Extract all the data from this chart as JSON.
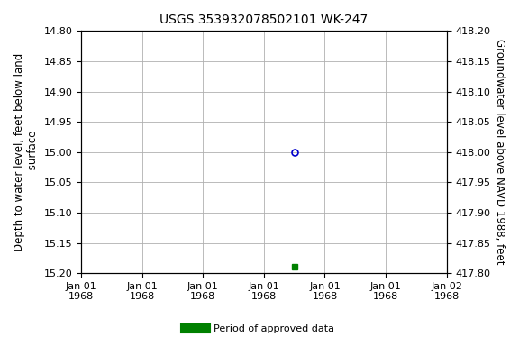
{
  "title": "USGS 353932078502101 WK-247",
  "ylabel_left": "Depth to water level, feet below land\n surface",
  "ylabel_right": "Groundwater level above NAVD 1988, feet",
  "ylim_left": [
    15.2,
    14.8
  ],
  "ylim_right": [
    417.8,
    418.2
  ],
  "yticks_left": [
    14.8,
    14.85,
    14.9,
    14.95,
    15.0,
    15.05,
    15.1,
    15.15,
    15.2
  ],
  "yticks_right": [
    417.8,
    417.85,
    417.9,
    417.95,
    418.0,
    418.05,
    418.1,
    418.15,
    418.2
  ],
  "data_point_open_x": 3.5,
  "data_point_open_y": 15.0,
  "data_point_filled_x": 3.5,
  "data_point_filled_y": 15.19,
  "open_marker_color": "#0000cc",
  "filled_marker_color": "#008000",
  "background_color": "white",
  "grid_color": "#b0b0b0",
  "legend_label": "Period of approved data",
  "legend_color": "#008000",
  "title_fontsize": 10,
  "tick_fontsize": 8,
  "label_fontsize": 8.5,
  "xlim": [
    0,
    6
  ],
  "xtick_positions": [
    0,
    1,
    2,
    3,
    4,
    5,
    6
  ],
  "xtick_labels": [
    "Jan 01\n1968",
    "Jan 01\n1968",
    "Jan 01\n1968",
    "Jan 01\n1968",
    "Jan 01\n1968",
    "Jan 01\n1968",
    "Jan 02\n1968"
  ]
}
